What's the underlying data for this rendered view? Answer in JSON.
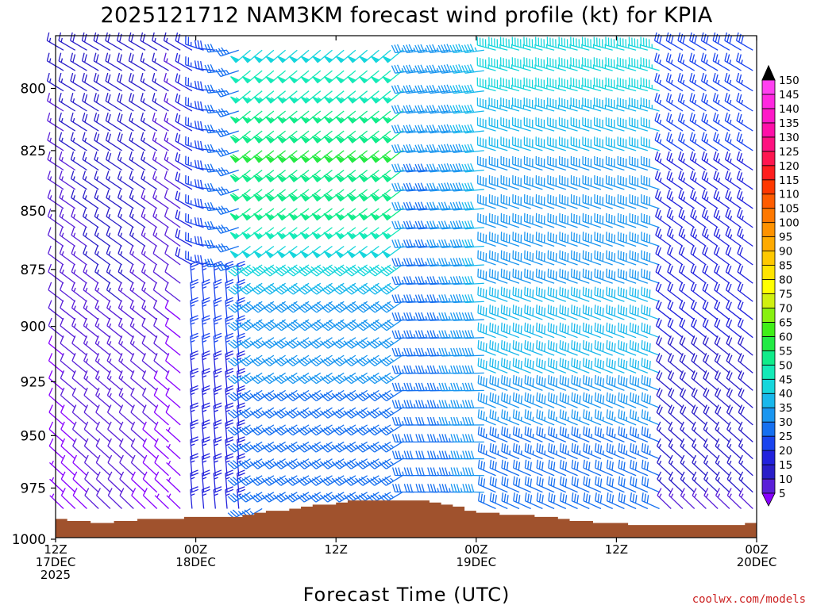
{
  "chart_data": {
    "type": "wind-barb-timeseries",
    "title": "2025121712 NAM3KM forecast wind profile (kt) for KPIA",
    "xlabel": "Forecast Time (UTC)",
    "ylabel": "",
    "units": "kt",
    "init": "2025121712",
    "model": "NAM3KM",
    "station": "KPIA",
    "forecast_hours": [
      0,
      60
    ],
    "pressure_range_hPa": [
      780,
      1000
    ],
    "y_ticks": [
      800,
      825,
      850,
      875,
      900,
      925,
      950,
      975,
      1000
    ],
    "x_ticks": [
      {
        "hour": 0,
        "line1": "12Z",
        "line2": "17DEC",
        "line3": "2025"
      },
      {
        "hour": 12,
        "line1": "00Z",
        "line2": "18DEC",
        "line3": ""
      },
      {
        "hour": 24,
        "line1": "12Z",
        "line2": "",
        "line3": ""
      },
      {
        "hour": 36,
        "line1": "00Z",
        "line2": "19DEC",
        "line3": ""
      },
      {
        "hour": 48,
        "line1": "12Z",
        "line2": "",
        "line3": ""
      },
      {
        "hour": 60,
        "line1": "00Z",
        "line2": "20DEC",
        "line3": ""
      }
    ],
    "colorbar": {
      "levels": [
        5,
        10,
        15,
        20,
        25,
        30,
        35,
        40,
        45,
        50,
        55,
        60,
        65,
        70,
        75,
        80,
        85,
        90,
        95,
        100,
        105,
        110,
        115,
        120,
        125,
        130,
        135,
        140,
        145,
        150
      ],
      "colors": [
        "#8800ff",
        "#5a20d8",
        "#2a1ec8",
        "#2222dd",
        "#1a44ee",
        "#1670f0",
        "#1a96f0",
        "#18b8ec",
        "#16d6dc",
        "#14eab8",
        "#10ec8a",
        "#22ea44",
        "#40ee18",
        "#88f010",
        "#d0f010",
        "#ffff00",
        "#ffe400",
        "#ffc800",
        "#ffaa00",
        "#ff9200",
        "#ff7800",
        "#ff5c00",
        "#ff3800",
        "#ff1e1e",
        "#ff1650",
        "#ff1280",
        "#ff10a8",
        "#ff18c8",
        "#ff28e0",
        "#ff40f0"
      ]
    },
    "surface_pressure_hPa": [
      [
        0,
        990
      ],
      [
        2,
        991
      ],
      [
        4,
        992
      ],
      [
        6,
        991
      ],
      [
        8,
        990
      ],
      [
        10,
        990
      ],
      [
        11,
        989
      ],
      [
        15,
        989
      ],
      [
        17,
        987
      ],
      [
        19,
        986
      ],
      [
        20,
        985
      ],
      [
        21,
        984
      ],
      [
        23,
        983
      ],
      [
        24,
        982
      ],
      [
        25,
        981
      ],
      [
        32,
        981
      ],
      [
        33,
        982
      ],
      [
        35,
        985
      ],
      [
        37,
        987
      ],
      [
        40,
        988
      ],
      [
        42,
        989
      ],
      [
        45,
        991
      ],
      [
        48,
        992
      ],
      [
        50,
        993
      ],
      [
        54,
        993
      ],
      [
        58,
        993
      ],
      [
        59,
        992
      ],
      [
        60,
        991
      ]
    ],
    "wind_regimes": [
      {
        "hours": [
          0,
          10
        ],
        "dir_deg": 315,
        "speed_kt": 15,
        "note": "NW, weaker near surface"
      },
      {
        "hours": [
          12,
          16
        ],
        "dir_deg": 350,
        "speed_kt": 25,
        "note": "N near surface"
      },
      {
        "hours": [
          16,
          30
        ],
        "dir_deg": 230,
        "speed_kt": 45,
        "note": "SW low-level jet, 55-60 kt near 825 hPa"
      },
      {
        "hours": [
          30,
          37
        ],
        "dir_deg": 270,
        "speed_kt": 40,
        "note": "W"
      },
      {
        "hours": [
          37,
          52
        ],
        "dir_deg": 290,
        "speed_kt": 40,
        "note": "WNW"
      },
      {
        "hours": [
          52,
          60
        ],
        "dir_deg": 300,
        "speed_kt": 20,
        "note": "NW weakening"
      }
    ],
    "credit": "coolwx.com/models"
  }
}
